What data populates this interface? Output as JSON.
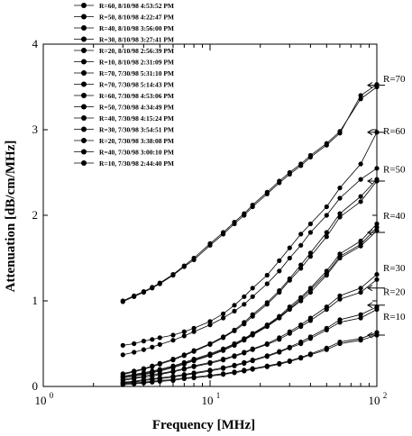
{
  "chart_data": {
    "type": "line",
    "xscale": "log",
    "xlabel": "Frequency [MHz]",
    "ylabel": "Attenuation [dB/cm/MHz]",
    "xlim": [
      1,
      100
    ],
    "ylim": [
      0,
      4
    ],
    "xtick_labels": [
      {
        "value": 1,
        "base": "10",
        "exp": "0"
      },
      {
        "value": 10,
        "base": "10",
        "exp": "1"
      },
      {
        "value": 100,
        "base": "10",
        "exp": "2"
      }
    ],
    "yticks": [
      0,
      1,
      2,
      3,
      4
    ],
    "x": [
      3.0,
      3.5,
      4.0,
      4.5,
      5.0,
      6.0,
      7.0,
      8.0,
      10.0,
      12.0,
      14.0,
      16.0,
      18.0,
      22.0,
      26.0,
      30.0,
      35.0,
      40.0,
      50.0,
      60.0,
      80.0,
      100.0
    ],
    "legend": [
      "R=60, 8/10/98 4:53:52 PM",
      "R=50, 8/10/98 4:22:47 PM",
      "R=40, 8/10/98 3:56:00 PM",
      "R=30, 8/10/98 3:27:41 PM",
      "R=20, 8/10/98 2:56:39 PM",
      "R=10, 8/10/98 2:31:09 PM",
      "R=70, 7/30/98 5:31:10 PM",
      "R=70, 7/30/98 5:14:43 PM",
      "R=60, 7/30/98 4:53:06 PM",
      "R=50, 7/30/98 4:34:49 PM",
      "R=40, 7/30/98 4:15:24 PM",
      "R=30, 7/30/98 3:54:51 PM",
      "R=20, 7/30/98 3:38:08 PM",
      "R=40, 7/30/98 3:00:10 PM",
      "R=10, 7/30/98 2:44:40 PM"
    ],
    "series": [
      {
        "name": "R=70, 7/30/98 5:31:10 PM",
        "values": [
          0.99,
          1.05,
          1.1,
          1.15,
          1.2,
          1.3,
          1.4,
          1.48,
          1.65,
          1.78,
          1.9,
          2.0,
          2.1,
          2.25,
          2.38,
          2.48,
          2.58,
          2.68,
          2.82,
          2.96,
          3.4,
          3.53
        ]
      },
      {
        "name": "R=70, 7/30/98 5:14:43 PM",
        "values": [
          1.0,
          1.06,
          1.11,
          1.16,
          1.21,
          1.31,
          1.41,
          1.5,
          1.67,
          1.8,
          1.92,
          2.02,
          2.12,
          2.27,
          2.4,
          2.5,
          2.6,
          2.7,
          2.84,
          2.98,
          3.36,
          3.5
        ]
      },
      {
        "name": "R=60, 8/10/98 4:53:52 PM",
        "values": [
          0.48,
          0.5,
          0.53,
          0.55,
          0.57,
          0.6,
          0.64,
          0.68,
          0.76,
          0.85,
          0.95,
          1.05,
          1.15,
          1.3,
          1.47,
          1.62,
          1.78,
          1.9,
          2.1,
          2.32,
          2.6,
          2.97
        ]
      },
      {
        "name": "R=60, 7/30/98 4:53:06 PM",
        "values": [
          0.37,
          0.4,
          0.43,
          0.46,
          0.49,
          0.54,
          0.59,
          0.64,
          0.72,
          0.8,
          0.88,
          0.96,
          1.05,
          1.2,
          1.35,
          1.5,
          1.65,
          1.8,
          2.0,
          2.2,
          2.42,
          2.55
        ]
      },
      {
        "name": "R=50, 8/10/98 4:22:47 PM",
        "values": [
          0.15,
          0.18,
          0.21,
          0.24,
          0.27,
          0.32,
          0.37,
          0.42,
          0.5,
          0.58,
          0.66,
          0.75,
          0.84,
          0.98,
          1.12,
          1.26,
          1.42,
          1.56,
          1.8,
          2.02,
          2.22,
          2.42
        ]
      },
      {
        "name": "R=50, 7/30/98 4:34:49 PM",
        "values": [
          0.14,
          0.17,
          0.2,
          0.23,
          0.26,
          0.31,
          0.36,
          0.41,
          0.49,
          0.57,
          0.65,
          0.73,
          0.82,
          0.96,
          1.1,
          1.24,
          1.38,
          1.52,
          1.75,
          1.98,
          2.16,
          2.4
        ]
      },
      {
        "name": "R=40, 8/10/98 3:56:00 PM",
        "values": [
          0.12,
          0.14,
          0.16,
          0.18,
          0.2,
          0.24,
          0.28,
          0.32,
          0.38,
          0.44,
          0.5,
          0.56,
          0.62,
          0.72,
          0.82,
          0.93,
          1.04,
          1.15,
          1.35,
          1.55,
          1.7,
          1.9
        ]
      },
      {
        "name": "R=40, 7/30/98 4:15:24 PM",
        "values": [
          0.11,
          0.13,
          0.15,
          0.17,
          0.19,
          0.23,
          0.27,
          0.31,
          0.37,
          0.43,
          0.49,
          0.55,
          0.61,
          0.71,
          0.81,
          0.91,
          1.02,
          1.13,
          1.32,
          1.52,
          1.66,
          1.86
        ]
      },
      {
        "name": "R=40, 7/30/98 3:00:10 PM",
        "values": [
          0.1,
          0.12,
          0.14,
          0.16,
          0.18,
          0.22,
          0.26,
          0.3,
          0.36,
          0.42,
          0.48,
          0.54,
          0.6,
          0.7,
          0.8,
          0.9,
          1.0,
          1.1,
          1.3,
          1.5,
          1.64,
          1.82
        ]
      },
      {
        "name": "R=30, 8/10/98 3:27:41 PM",
        "values": [
          0.08,
          0.1,
          0.12,
          0.14,
          0.15,
          0.18,
          0.21,
          0.24,
          0.28,
          0.32,
          0.36,
          0.4,
          0.44,
          0.5,
          0.57,
          0.64,
          0.72,
          0.8,
          0.93,
          1.06,
          1.15,
          1.31
        ]
      },
      {
        "name": "R=30, 7/30/98 3:54:51 PM",
        "values": [
          0.07,
          0.09,
          0.11,
          0.12,
          0.14,
          0.17,
          0.2,
          0.23,
          0.27,
          0.31,
          0.35,
          0.39,
          0.43,
          0.49,
          0.55,
          0.62,
          0.7,
          0.77,
          0.9,
          1.02,
          1.1,
          1.25
        ]
      },
      {
        "name": "R=20, 8/10/98 2:56:39 PM",
        "values": [
          0.05,
          0.06,
          0.08,
          0.09,
          0.1,
          0.12,
          0.14,
          0.16,
          0.19,
          0.22,
          0.25,
          0.28,
          0.31,
          0.36,
          0.41,
          0.46,
          0.52,
          0.58,
          0.68,
          0.78,
          0.84,
          0.93
        ]
      },
      {
        "name": "R=20, 7/30/98 3:38:08 PM",
        "values": [
          0.04,
          0.05,
          0.07,
          0.08,
          0.09,
          0.11,
          0.13,
          0.15,
          0.18,
          0.21,
          0.24,
          0.27,
          0.3,
          0.35,
          0.4,
          0.45,
          0.5,
          0.56,
          0.66,
          0.75,
          0.8,
          0.9
        ]
      },
      {
        "name": "R=10, 8/10/98 2:31:09 PM",
        "values": [
          0.03,
          0.04,
          0.05,
          0.06,
          0.07,
          0.08,
          0.1,
          0.11,
          0.13,
          0.15,
          0.17,
          0.19,
          0.21,
          0.24,
          0.27,
          0.3,
          0.34,
          0.38,
          0.45,
          0.52,
          0.56,
          0.63
        ]
      },
      {
        "name": "R=10, 7/30/98 2:44:40 PM",
        "values": [
          0.02,
          0.03,
          0.04,
          0.05,
          0.06,
          0.07,
          0.09,
          0.1,
          0.12,
          0.14,
          0.16,
          0.18,
          0.2,
          0.23,
          0.26,
          0.29,
          0.33,
          0.37,
          0.43,
          0.5,
          0.54,
          0.6
        ]
      }
    ],
    "annotations": [
      {
        "text": "R=70",
        "y": 3.56
      },
      {
        "text": "R=60",
        "y": 2.95
      },
      {
        "text": "R=50",
        "y": 2.5
      },
      {
        "text": "R=40",
        "y": 1.96
      },
      {
        "text": "R=30",
        "y": 1.35
      },
      {
        "text": "R=20",
        "y": 1.07
      },
      {
        "text": "R=10",
        "y": 0.78
      }
    ],
    "arrows": [
      {
        "y": 3.52
      },
      {
        "y": 2.97
      },
      {
        "y": 2.4
      },
      {
        "y": 1.8
      },
      {
        "y": 1.15
      },
      {
        "y": 0.95
      },
      {
        "y": 0.6
      }
    ],
    "grid": false,
    "legend_position": "top-left"
  }
}
